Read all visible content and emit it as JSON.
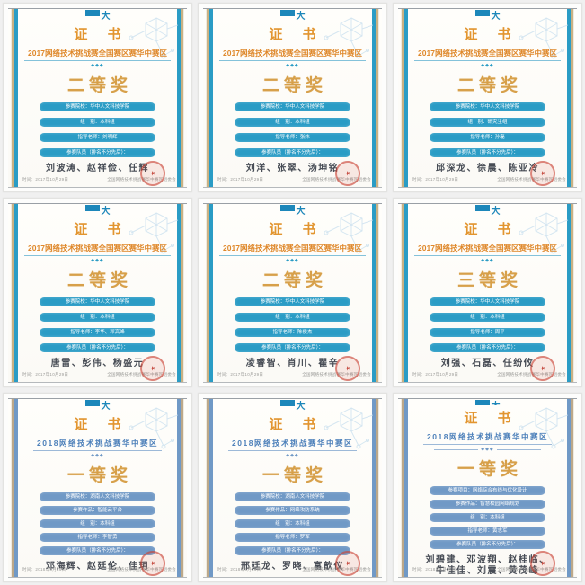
{
  "page": {
    "background_color": "#f0f0f0"
  },
  "separator_diamonds": "◆◆◆",
  "icons": {
    "seal_star": "★"
  },
  "certificates": [
    {
      "theme": "y2017",
      "logo_text": "大",
      "title": "证 书",
      "subtitle": "2017网络技术挑战赛全国赛区赛华中赛区",
      "award": "二等奖",
      "fields": [
        "参赛院校：华中人文科技学院",
        "组　别：本科组",
        "指导老师：刘明辉",
        "参赛队员（排名不分先后）："
      ],
      "names": [
        "刘波涛、赵祥俭、任辉"
      ],
      "footer_left": "时间：2017年10月29日",
      "footer_right": "全国网络技术挑战赛华中赛区组委会"
    },
    {
      "theme": "y2017",
      "logo_text": "大",
      "title": "证 书",
      "subtitle": "2017网络技术挑战赛全国赛区赛华中赛区",
      "award": "二等奖",
      "fields": [
        "参赛院校：华中人文科技学院",
        "组　别：本科组",
        "指导老师：张炜",
        "参赛队员（排名不分先后）："
      ],
      "names": [
        "刘洋、张翠、汤坤铭"
      ],
      "footer_left": "时间：2017年10月29日",
      "footer_right": "全国网络技术挑战赛华中赛区组委会"
    },
    {
      "theme": "y2017",
      "logo_text": "大",
      "title": "证 书",
      "subtitle": "2017网络技术挑战赛全国赛区赛华中赛区",
      "award": "二等奖",
      "fields": [
        "参赛院校：华中人文科技学院",
        "组　别：研究生组",
        "指导老师：孙磊",
        "参赛队员（排名不分先后）："
      ],
      "names": [
        "邱深龙、徐晨、陈亚冷"
      ],
      "footer_left": "时间：2017年10月29日",
      "footer_right": "全国网络技术挑战赛华中赛区组委会"
    },
    {
      "theme": "y2017",
      "logo_text": "大",
      "title": "证 书",
      "subtitle": "2017网络技术挑战赛全国赛区赛华中赛区",
      "award": "二等奖",
      "fields": [
        "参赛院校：华中人文科技学院",
        "组　别：本科组",
        "指导老师：李华、邓高峰",
        "参赛队员（排名不分先后）："
      ],
      "names": [
        "唐雷、彭伟、杨盛元"
      ],
      "footer_left": "时间：2017年10月29日",
      "footer_right": "全国网络技术挑战赛华中赛区组委会"
    },
    {
      "theme": "y2017",
      "logo_text": "大",
      "title": "证 书",
      "subtitle": "2017网络技术挑战赛全国赛区赛华中赛区",
      "award": "二等奖",
      "fields": [
        "参赛院校：华中人文科技学院",
        "组　别：本科组",
        "指导老师：陈俊杰",
        "参赛队员（排名不分先后）："
      ],
      "names": [
        "凌睿智、肖川、瞿辛"
      ],
      "footer_left": "时间：2017年10月29日",
      "footer_right": "全国网络技术挑战赛华中赛区组委会"
    },
    {
      "theme": "y2017",
      "logo_text": "大",
      "title": "证 书",
      "subtitle": "2017网络技术挑战赛全国赛区赛华中赛区",
      "award": "三等奖",
      "fields": [
        "参赛院校：华中人文科技学院",
        "组　别：本科组",
        "指导老师：周平",
        "参赛队员（排名不分先后）："
      ],
      "names": [
        "刘强、石磊、任纷攸"
      ],
      "footer_left": "时间：2017年10月29日",
      "footer_right": "全国网络技术挑战赛华中赛区组委会"
    },
    {
      "theme": "y2018",
      "logo_text": "大",
      "title": "证 书",
      "subtitle": "2018网络技术挑战赛华中赛区",
      "award": "一等奖",
      "fields": [
        "参赛院校：湖南人文科技学院",
        "参赛作品：智能云平台",
        "组　别：本科组",
        "指导老师：李智勇",
        "参赛队员（排名不分先后）："
      ],
      "names": [
        "邓海辉、赵廷伦、佳玥"
      ],
      "footer_left": "时间：2018年5月26日",
      "footer_right": "全国网络技术挑战赛华中赛区组委会"
    },
    {
      "theme": "y2018",
      "logo_text": "大",
      "title": "证 书",
      "subtitle": "2018网络技术挑战赛华中赛区",
      "award": "一等奖",
      "fields": [
        "参赛院校：湖南人文科技学院",
        "参赛作品：网络攻防系统",
        "组　别：本科组",
        "指导老师：罗军",
        "参赛队员（排名不分先后）："
      ],
      "names": [
        "邢廷龙、罗晓、富歆仪"
      ],
      "footer_left": "时间：2018年5月26日",
      "footer_right": "全国网络技术挑战赛华中赛区组委会"
    },
    {
      "theme": "y2018",
      "logo_text": "大",
      "title": "证 书",
      "subtitle": "2018网络技术挑战赛华中赛区",
      "award": "一等奖",
      "fields": [
        "参赛项目：网络综合布线与优化设计",
        "参赛作品：智慧校园网络规划",
        "组　别：本科组",
        "指导老师：黄志军",
        "参赛队员（排名不分先后）："
      ],
      "names": [
        "刘碧建、邓波翔、赵桂临、",
        "牛佳佳、刘震、黄茂峰"
      ],
      "footer_left": "时间：2018年5月26日",
      "footer_right": "全国网络技术挑战赛华中赛区组委会"
    }
  ]
}
